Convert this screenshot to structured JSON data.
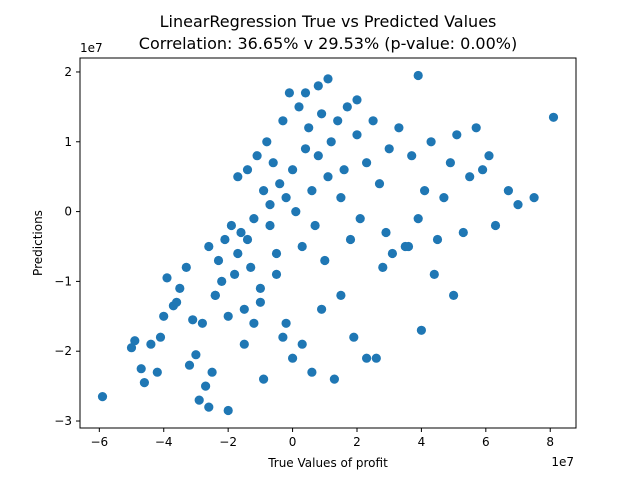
{
  "chart_data": {
    "type": "scatter",
    "title": "LinearRegression True vs Predicted Values",
    "subtitle": "Correlation: 36.65% v 29.53% (p-value: 0.00%)",
    "xlabel": "True Values of profit",
    "ylabel": "Predictions",
    "x_offset_text": "1e7",
    "y_offset_text": "1e7",
    "xlim": [
      -6.6,
      8.8
    ],
    "ylim": [
      -3.1,
      2.2
    ],
    "x_ticks": [
      -6,
      -4,
      -2,
      0,
      2,
      4,
      6,
      8
    ],
    "x_tick_labels": [
      "−6",
      "−4",
      "−2",
      "0",
      "2",
      "4",
      "6",
      "8"
    ],
    "y_ticks": [
      -3,
      -2,
      -1,
      0,
      1,
      2
    ],
    "y_tick_labels": [
      "−3",
      "−2",
      "−1",
      "0",
      "1",
      "2"
    ],
    "grid": false,
    "marker_color": "#1f77b4",
    "series": [
      {
        "x": [
          -5.9,
          -5.0,
          -4.9,
          -4.7,
          -4.6,
          -4.4,
          -4.2,
          -4.1,
          -4.0,
          -3.9,
          -3.7,
          -3.5,
          -3.3,
          -3.2,
          -3.0,
          -2.8,
          -2.7,
          -2.6,
          -2.5,
          -2.4,
          -2.3,
          -2.2,
          -2.1,
          -2.0,
          -1.9,
          -1.8,
          -1.7,
          -1.6,
          -1.5,
          -1.4,
          -1.3,
          -1.2,
          -1.1,
          -1.0,
          -0.9,
          -0.8,
          -0.7,
          -0.6,
          -0.5,
          -0.4,
          -0.3,
          -0.2,
          -0.1,
          0.0,
          0.1,
          0.2,
          0.3,
          0.4,
          0.5,
          0.6,
          0.7,
          0.8,
          0.9,
          1.0,
          1.1,
          1.2,
          1.4,
          1.5,
          1.6,
          1.8,
          2.0,
          2.1,
          2.3,
          2.5,
          2.7,
          2.9,
          3.0,
          3.3,
          3.5,
          3.7,
          3.9,
          4.1,
          4.3,
          4.5,
          4.7,
          4.9,
          5.1,
          5.3,
          5.5,
          5.7,
          5.9,
          6.1,
          6.3,
          6.7,
          7.0,
          7.5,
          8.1,
          3.9,
          1.7,
          0.8,
          1.1,
          0.4,
          2.0,
          -0.2,
          -0.9,
          -1.5,
          -2.0,
          -2.9,
          -3.6,
          -1.2,
          0.0,
          1.3,
          2.6,
          4.0,
          -0.5,
          0.6,
          1.9,
          -2.4,
          -1.7,
          0.3,
          -0.7,
          -3.1,
          -2.6,
          -1.0,
          0.9,
          2.3,
          3.1,
          -1.4,
          -0.3,
          1.5,
          2.8,
          3.6,
          4.4,
          5.0
        ],
        "y": [
          -2.65,
          -1.95,
          -1.85,
          -2.25,
          -2.45,
          -1.9,
          -2.3,
          -1.8,
          -1.5,
          -0.95,
          -1.35,
          -1.1,
          -0.8,
          -2.2,
          -2.05,
          -1.6,
          -2.5,
          -0.5,
          -2.3,
          -1.2,
          -0.7,
          -1.0,
          -0.4,
          -1.5,
          -0.2,
          -0.9,
          0.5,
          -0.3,
          -1.4,
          0.6,
          -0.8,
          -0.1,
          0.8,
          -1.1,
          0.3,
          1.0,
          0.1,
          0.7,
          -0.6,
          0.4,
          1.3,
          0.2,
          1.7,
          0.6,
          0.0,
          1.5,
          -0.5,
          0.9,
          1.2,
          0.3,
          -0.2,
          0.8,
          1.4,
          -0.7,
          0.5,
          1.0,
          1.3,
          0.2,
          0.6,
          -0.4,
          1.1,
          -0.1,
          0.7,
          1.3,
          0.4,
          -0.3,
          0.9,
          1.2,
          -0.5,
          0.8,
          -0.1,
          0.3,
          1.0,
          -0.4,
          0.2,
          0.7,
          1.1,
          -0.3,
          0.5,
          1.2,
          0.6,
          0.8,
          -0.2,
          0.3,
          0.1,
          0.2,
          1.35,
          1.95,
          1.5,
          1.8,
          1.9,
          1.7,
          1.6,
          -1.6,
          -2.4,
          -1.9,
          -2.85,
          -2.7,
          -1.3,
          -1.6,
          -2.1,
          -2.4,
          -2.1,
          -1.7,
          -0.9,
          -2.3,
          -1.8,
          -1.2,
          -0.6,
          -1.9,
          -0.2,
          -1.55,
          -2.8,
          -1.3,
          -1.4,
          -2.1,
          -0.6,
          -0.4,
          -1.8,
          -1.2,
          -0.8,
          -0.5,
          -0.9,
          -1.2
        ]
      }
    ]
  }
}
